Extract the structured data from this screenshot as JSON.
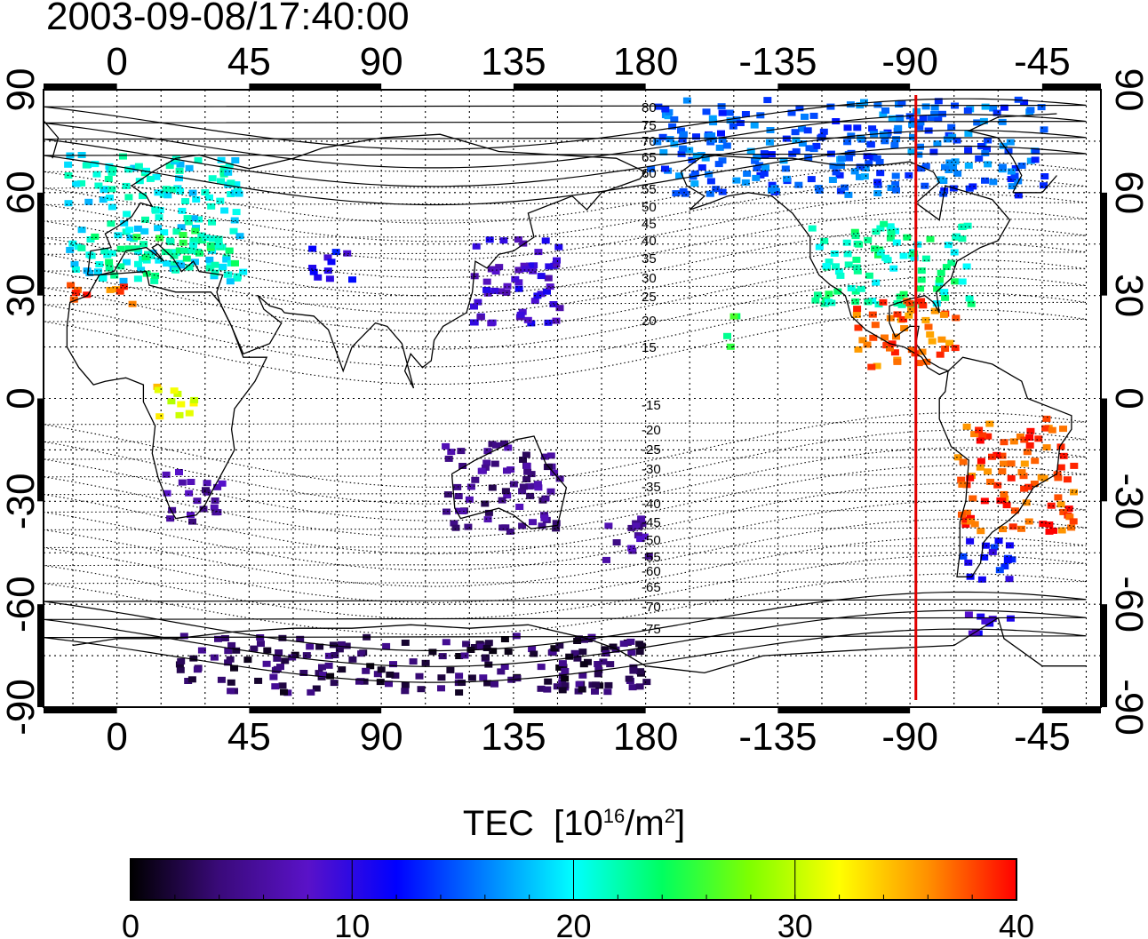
{
  "title": "2003-09-08/17:40:00",
  "map": {
    "lon_top_ticks": [
      "0",
      "45",
      "90",
      "135",
      "180",
      "-135",
      "-90",
      "-45"
    ],
    "lon_bottom_ticks": [
      "0",
      "45",
      "90",
      "135",
      "180",
      "-135",
      "-90",
      "-45"
    ],
    "lat_ticks": [
      "90",
      "60",
      "30",
      "0",
      "-30",
      "-60",
      "-90"
    ],
    "lon_range": [
      -25,
      335
    ],
    "lat_range": [
      -90,
      90
    ],
    "marker_longitude": -88,
    "marker_color": "#e00000",
    "grid": true,
    "coastlines": true,
    "magnetic_latitude_contours": {
      "labels_north": [
        "80",
        "75",
        "70",
        "65",
        "60",
        "55",
        "50",
        "45",
        "40",
        "35",
        "30",
        "25",
        "20",
        "15"
      ],
      "labels_south": [
        "-15",
        "-20",
        "-25",
        "-30",
        "-35",
        "-40",
        "-45",
        "-50",
        "-55",
        "-60",
        "-65",
        "-70",
        "-75"
      ]
    }
  },
  "colorbar": {
    "title": "TEC",
    "unit_prefix": "[10",
    "unit_exp": "16",
    "unit_mid": "/m",
    "unit_sq": "2",
    "unit_suffix": "]",
    "ticks": [
      "0",
      "10",
      "20",
      "30",
      "40"
    ],
    "min": 0,
    "max": 40,
    "colors": [
      "#000000",
      "#3a0a7a",
      "#5a12c8",
      "#0000ff",
      "#0080ff",
      "#00ffff",
      "#00ff60",
      "#80ff00",
      "#ffff00",
      "#ff9000",
      "#ff0000"
    ]
  },
  "chart_data": {
    "type": "heatmap",
    "title": "2003-09-08/17:40:00",
    "xlabel": "",
    "ylabel": "",
    "colorbar_label": "TEC [10^16/m^2]",
    "x_ticks": [
      0,
      45,
      90,
      135,
      180,
      -135,
      -90,
      -45
    ],
    "y_ticks": [
      90,
      60,
      30,
      0,
      -30,
      -60,
      -90
    ],
    "xlim": [
      -25,
      335
    ],
    "ylim": [
      -90,
      90
    ],
    "clim": [
      0,
      40
    ],
    "regions": [
      {
        "name": "",
        "lon": [
          -18,
          42
        ],
        "lat": [
          35,
          72
        ],
        "tec": 20
      },
      {
        "name": "",
        "lon": [
          -10,
          40
        ],
        "lat": [
          36,
          50
        ],
        "tec": 23
      },
      {
        "name": "",
        "lon": [
          -18,
          5
        ],
        "lat": [
          28,
          34
        ],
        "tec": 38
      },
      {
        "name": "",
        "lon": [
          10,
          25
        ],
        "lat": [
          -5,
          5
        ],
        "tec": 32
      },
      {
        "name": "",
        "lon": [
          15,
          35
        ],
        "lat": [
          -35,
          -20
        ],
        "tec": 6
      },
      {
        "name": "",
        "lon": [
          65,
          80
        ],
        "lat": [
          35,
          45
        ],
        "tec": 11
      },
      {
        "name": "",
        "lon": [
          120,
          150
        ],
        "lat": [
          22,
          48
        ],
        "tec": 9
      },
      {
        "name": "",
        "lon": [
          110,
          150
        ],
        "lat": [
          -38,
          -12
        ],
        "tec": 5
      },
      {
        "name": "",
        "lon": [
          165,
          180
        ],
        "lat": [
          -48,
          -34
        ],
        "tec": 6
      },
      {
        "name": "",
        "lon": [
          20,
          180
        ],
        "lat": [
          -85,
          -68
        ],
        "tec": 3
      },
      {
        "name": "",
        "lon": [
          -180,
          -45
        ],
        "lat": [
          60,
          88
        ],
        "tec": 15
      },
      {
        "name": "",
        "lon": [
          -125,
          -70
        ],
        "lat": [
          28,
          52
        ],
        "tec": 22
      },
      {
        "name": "",
        "lon": [
          -110,
          -75
        ],
        "lat": [
          10,
          30
        ],
        "tec": 37
      },
      {
        "name": "",
        "lon": [
          -75,
          -35
        ],
        "lat": [
          -38,
          -5
        ],
        "tec": 38
      },
      {
        "name": "",
        "lon": [
          -75,
          -55
        ],
        "lat": [
          -52,
          -40
        ],
        "tec": 12
      },
      {
        "name": "",
        "lon": [
          -75,
          -55
        ],
        "lat": [
          -68,
          -62
        ],
        "tec": 10
      },
      {
        "name": "",
        "lon": [
          -155,
          -150
        ],
        "lat": [
          15,
          25
        ],
        "tec": 24
      }
    ]
  }
}
